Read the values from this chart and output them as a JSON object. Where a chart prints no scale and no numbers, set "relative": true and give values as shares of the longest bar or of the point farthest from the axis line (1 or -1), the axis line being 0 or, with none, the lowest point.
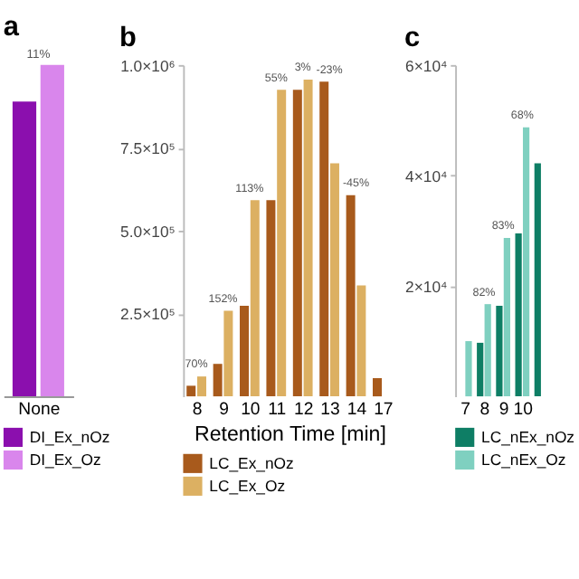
{
  "chart_data": [
    {
      "type": "bar",
      "title": "a",
      "relative": true,
      "categories": [
        "None"
      ],
      "legend": "bottom",
      "series": [
        {
          "name": "DI_Ex_nOz",
          "color": "#8b0fae",
          "values": [
            0.89
          ]
        },
        {
          "name": "DI_Ex_Oz",
          "color": "#d986ec",
          "values": [
            1.0
          ]
        }
      ],
      "annotations": [
        "11%"
      ]
    },
    {
      "type": "bar",
      "title": "b",
      "xlabel": "Retention Time [min]",
      "categories": [
        "8",
        "9",
        "10",
        "11",
        "12",
        "13",
        "14",
        "17"
      ],
      "legend": "bottom",
      "ylim": [
        0,
        1000000
      ],
      "yticks": [
        {
          "value": 250000,
          "label": "2.5×10⁵"
        },
        {
          "value": 500000,
          "label": "5.0×10⁵"
        },
        {
          "value": 750000,
          "label": "7.5×10⁵"
        },
        {
          "value": 1000000,
          "label": "1.0×10⁶"
        }
      ],
      "series": [
        {
          "name": "LC_Ex_nOz",
          "color": "#a85a1c",
          "values": [
            32000,
            98000,
            273000,
            592000,
            925000,
            950000,
            607000,
            55000
          ]
        },
        {
          "name": "LC_Ex_Oz",
          "color": "#dcb062",
          "values": [
            60000,
            258000,
            592000,
            925000,
            956000,
            703000,
            335000,
            null
          ]
        }
      ],
      "annotations": [
        {
          "text": "70%",
          "x": "8",
          "y": 60000
        },
        {
          "text": "152%",
          "x": "9",
          "y": 258000
        },
        {
          "text": "113%",
          "x": "10",
          "y": 592000
        },
        {
          "text": "55%",
          "x": "11",
          "y": 925000
        },
        {
          "text": "3%",
          "x": "12",
          "y": 956000
        },
        {
          "text": "-23%",
          "x": "13",
          "y": 950000
        },
        {
          "text": "-45%",
          "x": "14",
          "y": 607000
        }
      ]
    },
    {
      "type": "bar",
      "title": "c",
      "categories": [
        "7",
        "8",
        "9",
        "10",
        null
      ],
      "legend": "bottom",
      "ylim": [
        0,
        60000
      ],
      "yticks": [
        {
          "value": 20000,
          "label": "2×10⁴"
        },
        {
          "value": 40000,
          "label": "4×10⁴"
        },
        {
          "value": 60000,
          "label": "6×10⁴"
        }
      ],
      "series": [
        {
          "name": "LC_nEx_nOz",
          "color": "#0e7e65",
          "values": [
            null,
            9700,
            16400,
            29500,
            42200
          ]
        },
        {
          "name": "LC_nEx_Oz",
          "color": "#7fd0c0",
          "values": [
            10000,
            16700,
            28700,
            48700,
            null
          ]
        }
      ],
      "annotations": [
        {
          "text": "82%",
          "x": "8",
          "y": 16700
        },
        {
          "text": "83%",
          "x": "9",
          "y": 28700
        },
        {
          "text": "68%",
          "x": "10",
          "y": 48700
        }
      ]
    }
  ]
}
